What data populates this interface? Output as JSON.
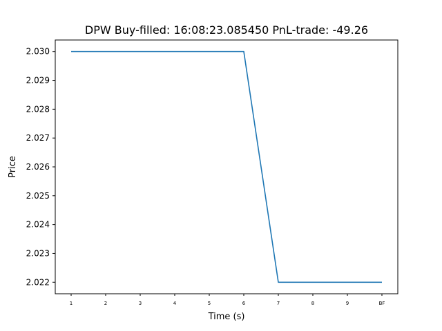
{
  "chart_data": {
    "type": "line",
    "title": "DPW  Buy-filled:  16:08:23.085450  PnL-trade:  -49.26",
    "xlabel": "Time (s)",
    "ylabel": "Price",
    "categories": [
      "1",
      "2",
      "3",
      "4",
      "5",
      "6",
      "7",
      "8",
      "9",
      "BF"
    ],
    "series": [
      {
        "values": [
          2.03,
          2.03,
          2.03,
          2.03,
          2.03,
          2.03,
          2.022,
          2.022,
          2.022,
          2.022
        ]
      }
    ],
    "ylim": [
      2.0216,
      2.0304
    ],
    "yticks": [
      "2.022",
      "2.023",
      "2.024",
      "2.025",
      "2.026",
      "2.027",
      "2.028",
      "2.029",
      "2.030"
    ],
    "grid": false,
    "line_color": "#1f77b4"
  }
}
